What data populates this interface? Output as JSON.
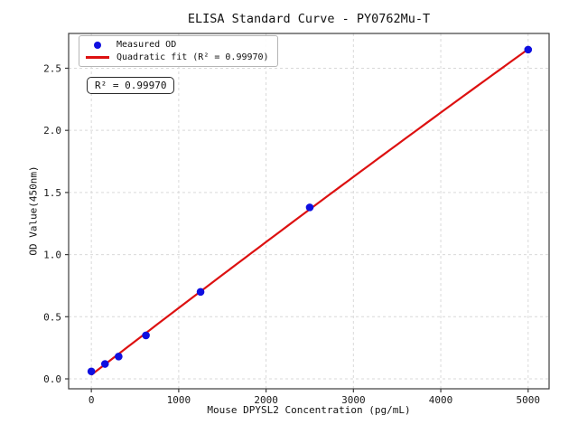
{
  "title": "ELISA Standard Curve - PY0762Mu-T",
  "axes": {
    "xlabel": "Mouse DPYSL2 Concentration (pg/mL)",
    "ylabel": "OD Value(450nm)"
  },
  "legend": {
    "items": [
      {
        "label": "Measured OD",
        "marker": "dot",
        "color": "#0f0fe0"
      },
      {
        "label": "Quadratic fit (R² = 0.99970)",
        "marker": "line",
        "color": "#dd1111"
      }
    ]
  },
  "annotation": {
    "text": "R² = 0.99970"
  },
  "colors": {
    "scatter": "#0f0fe0",
    "fit_line": "#dd1111",
    "grid": "#d9d9d9",
    "spine": "#3c3c3c",
    "tick_text": "#1a1a1a",
    "background": "#ffffff"
  },
  "chart_data": {
    "type": "scatter",
    "title": "ELISA Standard Curve - PY0762Mu-T",
    "xlabel": "Mouse DPYSL2 Concentration (pg/mL)",
    "ylabel": "OD Value(450nm)",
    "x": [
      0,
      156.25,
      312.5,
      625,
      1250,
      2500,
      5000
    ],
    "series": [
      {
        "name": "Measured OD",
        "type": "scatter",
        "color": "#0f0fe0",
        "values": [
          0.06,
          0.12,
          0.18,
          0.35,
          0.7,
          1.38,
          2.65
        ]
      },
      {
        "name": "Quadratic fit (R² = 0.99970)",
        "type": "fit-line",
        "fit": "quadratic",
        "color": "#dd1111",
        "r_squared": "0.99970",
        "x_range": [
          0,
          5000
        ]
      }
    ],
    "x_ticks": [
      0,
      1000,
      2000,
      3000,
      4000,
      5000
    ],
    "y_ticks": [
      0.0,
      0.5,
      1.0,
      1.5,
      2.0,
      2.5
    ],
    "xlim": [
      -260,
      5240
    ],
    "ylim": [
      -0.08,
      2.78
    ],
    "grid": true,
    "legend_position": "upper left"
  }
}
